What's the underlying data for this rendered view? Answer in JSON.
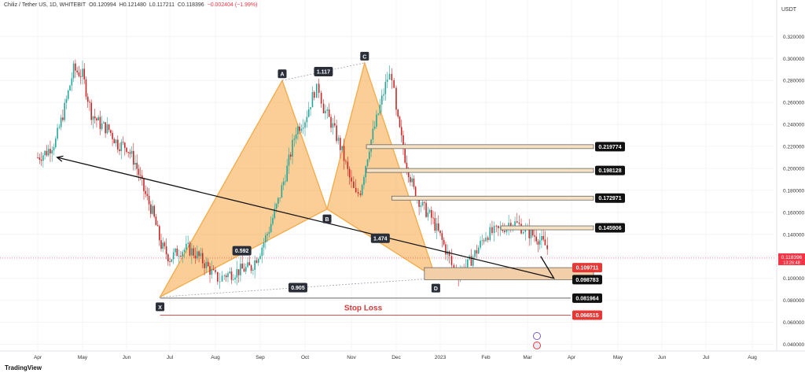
{
  "header": {
    "symbol": "Chiliz / Tether US, 1D, WHITEBIT",
    "open": "O0.120994",
    "high": "H0.121480",
    "low": "L0.117211",
    "close": "C0.118396",
    "change": "−0.002404 (−1.99%)"
  },
  "footer": {
    "brand": "TradingView"
  },
  "chart_data": {
    "type": "candlestick",
    "currency_label": "USDT",
    "y_ticks": [
      "0.040000",
      "0.060000",
      "0.080000",
      "0.100000",
      "0.120000",
      "0.140000",
      "0.160000",
      "0.180000",
      "0.200000",
      "0.220000",
      "0.240000",
      "0.260000",
      "0.280000",
      "0.300000",
      "0.320000"
    ],
    "x_ticks": [
      "Apr",
      "May",
      "Jun",
      "Jul",
      "Aug",
      "Sep",
      "Oct",
      "Nov",
      "Dec",
      "2023",
      "Feb",
      "Mar",
      "Apr",
      "May",
      "Jun",
      "Jul",
      "Aug"
    ],
    "current_price": {
      "value": "0.118396",
      "countdown": "13:26:48",
      "color": "#f23645"
    },
    "price_path": [
      [
        0,
        0.21
      ],
      [
        1,
        0.215
      ],
      [
        2,
        0.225
      ],
      [
        3,
        0.255
      ],
      [
        4,
        0.29
      ],
      [
        5,
        0.285
      ],
      [
        6,
        0.25
      ],
      [
        7,
        0.24
      ],
      [
        8,
        0.235
      ],
      [
        9,
        0.222
      ],
      [
        10,
        0.22
      ],
      [
        11,
        0.205
      ],
      [
        12,
        0.18
      ],
      [
        13,
        0.16
      ],
      [
        14,
        0.13
      ],
      [
        15,
        0.118
      ],
      [
        16,
        0.125
      ],
      [
        17,
        0.127
      ],
      [
        18,
        0.121
      ],
      [
        19,
        0.112
      ],
      [
        20,
        0.101
      ],
      [
        20.5,
        0.099
      ],
      [
        21,
        0.103
      ],
      [
        22,
        0.105
      ],
      [
        23,
        0.108
      ],
      [
        24,
        0.11
      ],
      [
        25,
        0.125
      ],
      [
        26,
        0.145
      ],
      [
        27,
        0.17
      ],
      [
        28,
        0.2
      ],
      [
        29,
        0.235
      ],
      [
        30,
        0.245
      ],
      [
        31,
        0.27
      ],
      [
        31.5,
        0.272
      ],
      [
        32,
        0.255
      ],
      [
        33,
        0.238
      ],
      [
        34,
        0.215
      ],
      [
        35,
        0.185
      ],
      [
        35.5,
        0.175
      ],
      [
        36,
        0.18
      ],
      [
        37,
        0.22
      ],
      [
        38,
        0.25
      ],
      [
        39,
        0.282
      ],
      [
        39.5,
        0.285
      ],
      [
        40,
        0.25
      ],
      [
        41,
        0.21
      ],
      [
        42,
        0.18
      ],
      [
        43,
        0.165
      ],
      [
        44,
        0.155
      ],
      [
        45,
        0.138
      ],
      [
        46,
        0.118
      ],
      [
        46.5,
        0.106
      ],
      [
        47,
        0.105
      ],
      [
        48,
        0.112
      ],
      [
        49,
        0.125
      ],
      [
        50,
        0.14
      ],
      [
        51,
        0.142
      ],
      [
        52,
        0.145
      ],
      [
        53,
        0.152
      ],
      [
        54,
        0.148
      ],
      [
        55,
        0.142
      ],
      [
        56,
        0.138
      ],
      [
        57,
        0.13
      ],
      [
        57.5,
        0.124
      ]
    ],
    "month_start_index": {
      "Apr": 0,
      "May": 5,
      "Jun": 10,
      "Jul": 15,
      "Aug": 20,
      "Sep": 25,
      "Oct": 30,
      "Nov": 35,
      "Dec": 40,
      "2023": 45,
      "Feb": 50,
      "Mar": 55
    },
    "harmonic_pattern": {
      "points": [
        {
          "label": "X",
          "month": "Jun",
          "offset": 3.8,
          "price": 0.083
        },
        {
          "label": "A",
          "month": "Sep",
          "offset": 2.5,
          "price": 0.28
        },
        {
          "label": "B",
          "month": "Oct",
          "offset": 2.5,
          "price": 0.163
        },
        {
          "label": "C",
          "month": "Nov",
          "offset": 1.5,
          "price": 0.296
        },
        {
          "label": "D",
          "month": "Dec",
          "offset": 4.5,
          "price": 0.1
        }
      ],
      "ratios": [
        {
          "value": "0.592",
          "between": "XB"
        },
        {
          "value": "1.117",
          "between": "AC"
        },
        {
          "value": "1.474",
          "between": "BD"
        },
        {
          "value": "0.905",
          "between": "XD"
        }
      ],
      "fill_color": "#f5a640"
    },
    "levels": [
      {
        "label": "0.219774",
        "value": 0.219774,
        "kind": "target"
      },
      {
        "label": "0.198128",
        "value": 0.198128,
        "kind": "target"
      },
      {
        "label": "0.172971",
        "value": 0.172971,
        "kind": "target"
      },
      {
        "label": "0.145906",
        "value": 0.145906,
        "kind": "target"
      },
      {
        "label": "0.109711",
        "value": 0.109711,
        "kind": "zone-top"
      },
      {
        "label": "0.098783",
        "value": 0.098783,
        "kind": "zone-bottom"
      },
      {
        "label": "0.081964",
        "value": 0.081964,
        "kind": "x-level"
      },
      {
        "label": "0.066515",
        "value": 0.066515,
        "kind": "stop"
      }
    ],
    "stop_loss_label": "Stop Loss",
    "projection": [
      {
        "month": "Mar",
        "offset": 1.5,
        "price": 0.12
      },
      {
        "month": "Mar",
        "offset": 3.0,
        "price": 0.1
      },
      {
        "month": "Apr",
        "offset": 2.2,
        "price": 0.21
      }
    ],
    "colors": {
      "up": "#26a69a",
      "down": "#c62828",
      "stop": "#d33a3a",
      "accent": "#f5a640"
    }
  }
}
